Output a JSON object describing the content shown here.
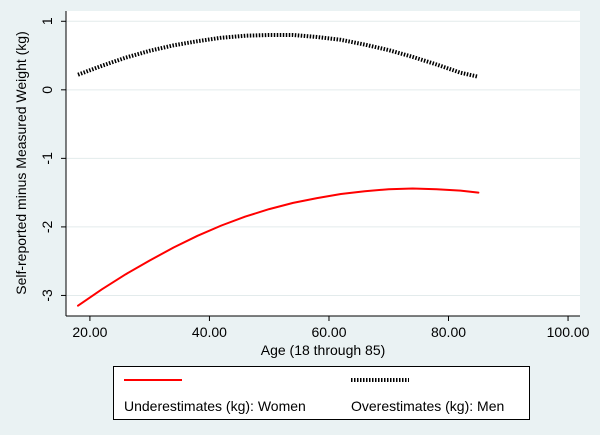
{
  "colors": {
    "background": "#eaf2f3",
    "plot_background": "#ffffff",
    "women_series": "#ff0000",
    "men_series": "#000000"
  },
  "chart_data": {
    "type": "line",
    "title": "",
    "xlabel": "Age (18 through 85)",
    "ylabel": "Self-reported minus Measured Weight (kg)",
    "xlim": [
      16,
      102
    ],
    "ylim": [
      -3.3,
      1.15
    ],
    "xticks": [
      20,
      40,
      60,
      80,
      100
    ],
    "xtick_labels": [
      "20.00",
      "40.00",
      "60.00",
      "80.00",
      "100.00"
    ],
    "yticks": [
      1,
      0,
      -1,
      -2,
      -3
    ],
    "ytick_labels": [
      "1",
      "0",
      "-1",
      "-2",
      "-3"
    ],
    "grid": true,
    "legend_position": "bottom",
    "series": [
      {
        "name": "Underestimates (kg): Women",
        "style": "solid",
        "color": "#ff0000",
        "x": [
          18,
          22,
          26,
          30,
          34,
          38,
          42,
          46,
          50,
          54,
          58,
          62,
          66,
          70,
          74,
          78,
          82,
          85
        ],
        "y": [
          -3.15,
          -2.91,
          -2.69,
          -2.49,
          -2.3,
          -2.13,
          -1.98,
          -1.85,
          -1.74,
          -1.65,
          -1.58,
          -1.52,
          -1.48,
          -1.45,
          -1.44,
          -1.45,
          -1.47,
          -1.5
        ]
      },
      {
        "name": "Overestimates (kg): Men",
        "style": "dotted",
        "color": "#000000",
        "x": [
          18,
          22,
          26,
          30,
          34,
          38,
          42,
          46,
          50,
          54,
          58,
          62,
          66,
          70,
          74,
          78,
          82,
          85
        ],
        "y": [
          0.22,
          0.35,
          0.47,
          0.57,
          0.65,
          0.71,
          0.76,
          0.79,
          0.8,
          0.8,
          0.77,
          0.73,
          0.66,
          0.58,
          0.48,
          0.37,
          0.25,
          0.19
        ]
      }
    ]
  }
}
